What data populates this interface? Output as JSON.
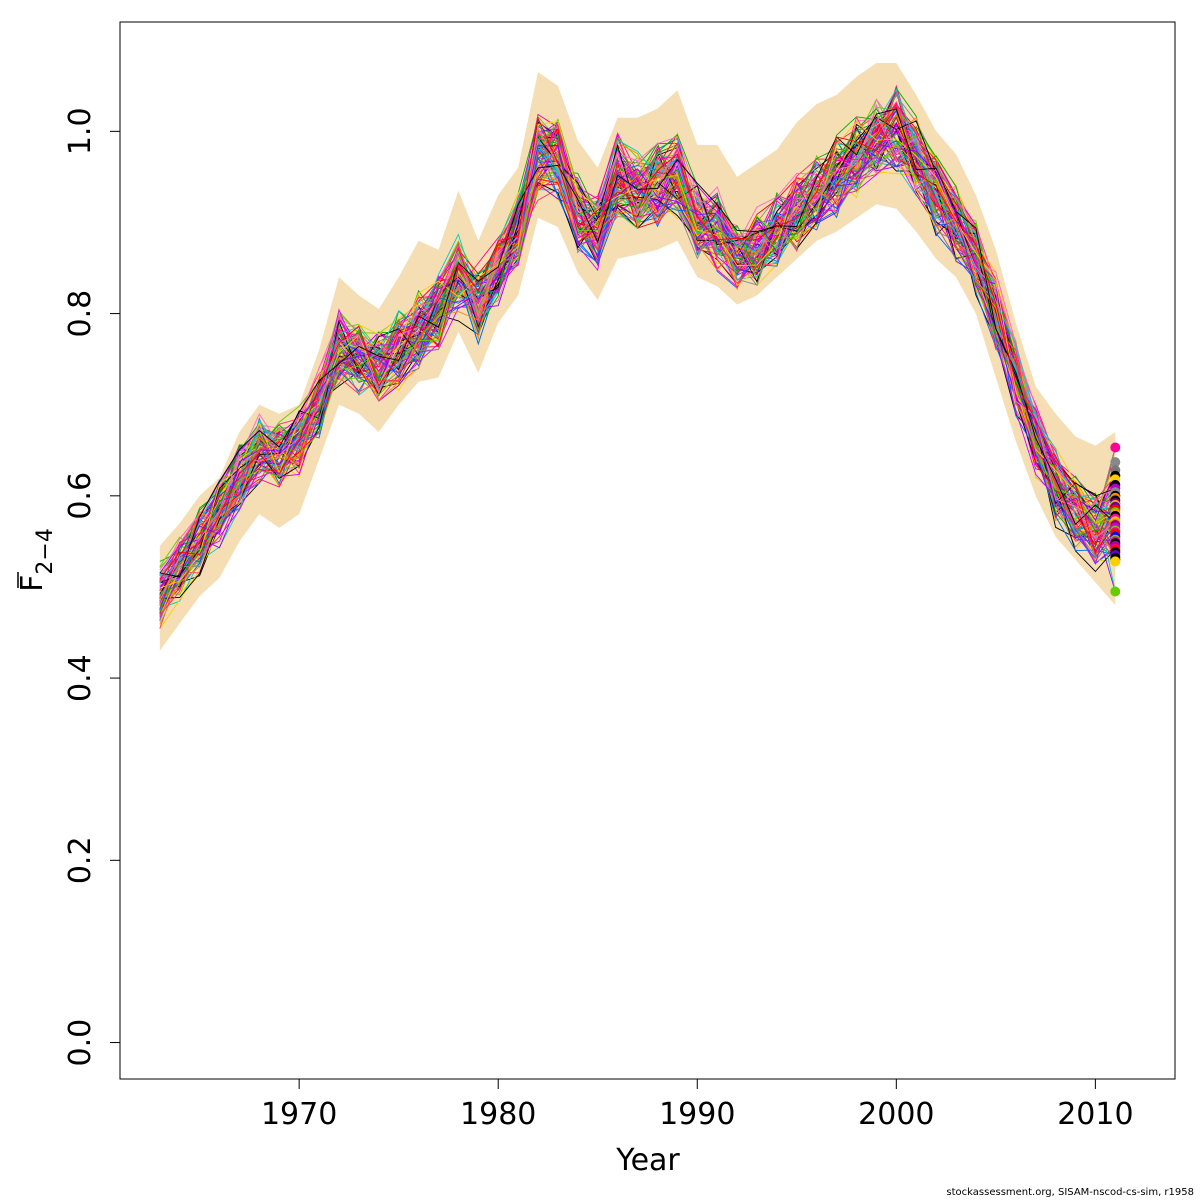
{
  "chart_data": {
    "type": "line",
    "xlabel": "Year",
    "ylabel": {
      "base": "F",
      "subscript": "2−4"
    },
    "xlim": [
      1961,
      2014
    ],
    "ylim": [
      -0.04,
      1.12
    ],
    "x_ticks": [
      1970,
      1980,
      1990,
      2000,
      2010
    ],
    "y_ticks": [
      0.0,
      0.2,
      0.4,
      0.6,
      0.8,
      1.0
    ],
    "grid": false,
    "band_color": "#f5deb3",
    "years": [
      1963,
      1964,
      1965,
      1966,
      1967,
      1968,
      1969,
      1970,
      1971,
      1972,
      1973,
      1974,
      1975,
      1976,
      1977,
      1978,
      1979,
      1980,
      1981,
      1982,
      1983,
      1984,
      1985,
      1986,
      1987,
      1988,
      1989,
      1990,
      1991,
      1992,
      1993,
      1994,
      1995,
      1996,
      1997,
      1998,
      1999,
      2000,
      2001,
      2002,
      2003,
      2004,
      2005,
      2006,
      2007,
      2008,
      2009,
      2010,
      2011
    ],
    "estimate": [
      0.49,
      0.52,
      0.55,
      0.58,
      0.62,
      0.65,
      0.64,
      0.66,
      0.7,
      0.76,
      0.75,
      0.74,
      0.76,
      0.78,
      0.8,
      0.84,
      0.81,
      0.85,
      0.89,
      0.97,
      0.97,
      0.91,
      0.89,
      0.95,
      0.93,
      0.94,
      0.95,
      0.9,
      0.89,
      0.86,
      0.87,
      0.89,
      0.91,
      0.93,
      0.95,
      0.97,
      0.99,
      1.0,
      0.97,
      0.93,
      0.9,
      0.86,
      0.8,
      0.73,
      0.66,
      0.61,
      0.58,
      0.56,
      0.56
    ],
    "band_lower": [
      0.43,
      0.46,
      0.49,
      0.51,
      0.55,
      0.58,
      0.565,
      0.58,
      0.64,
      0.7,
      0.69,
      0.67,
      0.7,
      0.725,
      0.73,
      0.78,
      0.735,
      0.79,
      0.82,
      0.905,
      0.895,
      0.845,
      0.815,
      0.86,
      0.865,
      0.87,
      0.88,
      0.84,
      0.83,
      0.81,
      0.82,
      0.84,
      0.86,
      0.88,
      0.89,
      0.905,
      0.92,
      0.915,
      0.89,
      0.86,
      0.84,
      0.8,
      0.73,
      0.66,
      0.6,
      0.555,
      0.53,
      0.505,
      0.48
    ],
    "band_upper": [
      0.545,
      0.57,
      0.6,
      0.62,
      0.67,
      0.7,
      0.69,
      0.7,
      0.76,
      0.84,
      0.82,
      0.805,
      0.84,
      0.88,
      0.87,
      0.935,
      0.88,
      0.93,
      0.96,
      1.065,
      1.05,
      0.99,
      0.96,
      1.015,
      1.015,
      1.025,
      1.045,
      0.985,
      0.985,
      0.95,
      0.965,
      0.98,
      1.01,
      1.03,
      1.04,
      1.06,
      1.075,
      1.075,
      1.04,
      1.0,
      0.975,
      0.93,
      0.87,
      0.79,
      0.72,
      0.69,
      0.665,
      0.655,
      0.67
    ],
    "replicates": {
      "count": 100,
      "colors": [
        "#000000",
        "#ff0000",
        "#cc00ff",
        "#0066ff",
        "#00aa00",
        "#ff8800",
        "#ff00aa",
        "#00cccc",
        "#888888",
        "#ffcc00",
        "#8800ff",
        "#ff3366",
        "#66cc00",
        "#ff66cc"
      ]
    },
    "final_points": {
      "x": 2011,
      "values": [
        0.653,
        0.637,
        0.628,
        0.622,
        0.618,
        0.612,
        0.608,
        0.604,
        0.6,
        0.598,
        0.595,
        0.592,
        0.59,
        0.588,
        0.585,
        0.582,
        0.58,
        0.578,
        0.575,
        0.572,
        0.57,
        0.568,
        0.565,
        0.562,
        0.56,
        0.558,
        0.555,
        0.552,
        0.55,
        0.548,
        0.545,
        0.542,
        0.54,
        0.538,
        0.535,
        0.532,
        0.53,
        0.528,
        0.495
      ],
      "colors": [
        "#ff0099",
        "#888888",
        "#777777",
        "#000000",
        "#ffcc00",
        "#000000",
        "#aa00cc",
        "#888888",
        "#000000",
        "#ff8800",
        "#000000",
        "#7700aa",
        "#ffaa00",
        "#6600aa",
        "#ff0000",
        "#66cc00",
        "#ff9900",
        "#000000",
        "#ff00aa",
        "#ffcc00",
        "#ff8800",
        "#880088",
        "#cc00cc",
        "#66cc00",
        "#ff0066",
        "#ff0000",
        "#0000ff",
        "#66cc00",
        "#ff0099",
        "#000000",
        "#aa00aa",
        "#ff0066",
        "#ff0000",
        "#000000",
        "#6600cc",
        "#000000",
        "#000000",
        "#ffcc00",
        "#66cc00"
      ]
    }
  },
  "caption": "stockassessment.org, SISAM-nscod-cs-sim, r1958"
}
